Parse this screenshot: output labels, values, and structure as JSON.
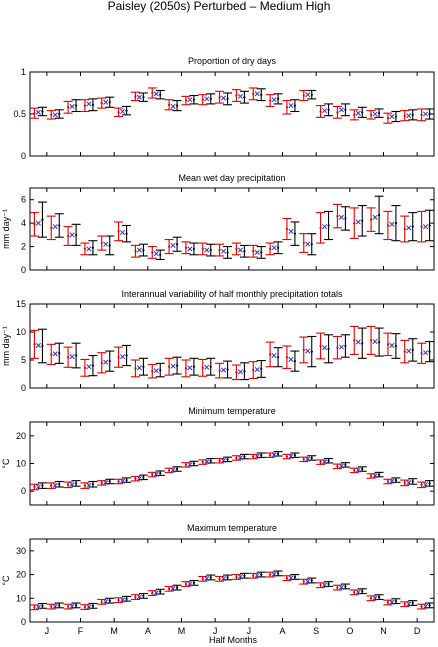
{
  "figure": {
    "title": "Paisley (2050s) Perturbed – Medium High",
    "xlabel": "Half Months",
    "month_labels": [
      "J",
      "F",
      "M",
      "A",
      "M",
      "J",
      "J",
      "A",
      "S",
      "O",
      "N",
      "D"
    ]
  },
  "colors": {
    "baseline": "#000000",
    "perturbed": "#dd0000",
    "marker": "#3333cc"
  },
  "chart_data": [
    {
      "type": "errorbar",
      "title": "Proportion of dry days",
      "ylabel": "",
      "ylim": [
        0,
        1
      ],
      "yticks": [
        0,
        0.5,
        1
      ],
      "ytick_labels": [
        "0",
        "0.5",
        "1"
      ],
      "x": [
        1,
        2,
        3,
        4,
        5,
        6,
        7,
        8,
        9,
        10,
        11,
        12,
        13,
        14,
        15,
        16,
        17,
        18,
        19,
        20,
        21,
        22,
        23,
        24
      ],
      "series": [
        {
          "mean": [
            0.53,
            0.5,
            0.6,
            0.61,
            0.64,
            0.54,
            0.7,
            0.73,
            0.6,
            0.67,
            0.68,
            0.68,
            0.7,
            0.73,
            0.68,
            0.6,
            0.73,
            0.55,
            0.55,
            0.52,
            0.51,
            0.47,
            0.49,
            0.5
          ],
          "err": [
            0.05,
            0.05,
            0.07,
            0.07,
            0.06,
            0.05,
            0.05,
            0.05,
            0.06,
            0.05,
            0.06,
            0.07,
            0.07,
            0.07,
            0.06,
            0.07,
            0.05,
            0.07,
            0.07,
            0.06,
            0.05,
            0.06,
            0.06,
            0.06
          ]
        },
        {
          "mean": [
            0.51,
            0.49,
            0.58,
            0.6,
            0.63,
            0.52,
            0.71,
            0.75,
            0.61,
            0.66,
            0.67,
            0.7,
            0.72,
            0.74,
            0.66,
            0.58,
            0.72,
            0.53,
            0.52,
            0.49,
            0.49,
            0.45,
            0.48,
            0.49
          ],
          "err": [
            0.06,
            0.05,
            0.07,
            0.07,
            0.06,
            0.05,
            0.05,
            0.06,
            0.06,
            0.05,
            0.06,
            0.07,
            0.07,
            0.07,
            0.07,
            0.08,
            0.06,
            0.07,
            0.07,
            0.06,
            0.05,
            0.06,
            0.06,
            0.07
          ]
        },
        {
          "mean": [
            0.52,
            0.49,
            0.59,
            0.62,
            0.64,
            0.53,
            0.7,
            0.74,
            0.59,
            0.67,
            0.68,
            0.69,
            0.71,
            0.74,
            0.67,
            0.6,
            0.73,
            0.54,
            0.55,
            0.51,
            0.5,
            0.47,
            0.48,
            0.5
          ]
        }
      ]
    },
    {
      "type": "errorbar",
      "title": "Mean wet day precipitation",
      "ylabel": "mm day⁻¹",
      "ylim": [
        0,
        7
      ],
      "yticks": [
        0,
        2,
        4,
        6
      ],
      "ytick_labels": [
        "0",
        "2",
        "4",
        "6"
      ],
      "x": [
        1,
        2,
        3,
        4,
        5,
        6,
        7,
        8,
        9,
        10,
        11,
        12,
        13,
        14,
        15,
        16,
        17,
        18,
        19,
        20,
        21,
        22,
        23,
        24
      ],
      "series": [
        {
          "mean": [
            4.3,
            3.8,
            3.0,
            1.9,
            2.1,
            3.1,
            1.7,
            1.3,
            2.2,
            1.8,
            1.7,
            1.5,
            1.6,
            1.5,
            1.9,
            3.1,
            2.2,
            3.8,
            4.4,
            4.2,
            4.7,
            4.0,
            3.7,
            3.8
          ],
          "err": [
            1.5,
            1.0,
            0.9,
            0.6,
            0.8,
            0.7,
            0.5,
            0.4,
            0.6,
            0.5,
            0.5,
            0.5,
            0.5,
            0.5,
            0.5,
            1.0,
            0.9,
            1.2,
            1.0,
            1.3,
            1.6,
            1.5,
            1.2,
            1.3
          ]
        },
        {
          "mean": [
            3.9,
            3.6,
            2.9,
            1.8,
            2.3,
            3.3,
            1.6,
            1.5,
            2.0,
            1.9,
            1.8,
            1.7,
            1.8,
            1.6,
            1.8,
            3.5,
            2.3,
            3.6,
            4.6,
            4.0,
            4.3,
            3.8,
            3.5,
            3.7
          ],
          "err": [
            1.0,
            1.0,
            0.8,
            0.5,
            0.6,
            0.8,
            0.5,
            0.5,
            0.6,
            0.5,
            0.5,
            0.5,
            0.5,
            0.5,
            0.5,
            0.9,
            0.8,
            1.3,
            1.0,
            1.3,
            1.0,
            1.2,
            1.1,
            1.3
          ]
        },
        {
          "mean": [
            4.0,
            3.7,
            3.0,
            1.8,
            2.2,
            3.2,
            1.7,
            1.4,
            2.1,
            1.8,
            1.7,
            1.6,
            1.7,
            1.5,
            1.9,
            3.3,
            2.2,
            3.7,
            4.5,
            4.1,
            4.5,
            3.9,
            3.6,
            3.7
          ]
        }
      ]
    },
    {
      "type": "errorbar",
      "title": "Interannual variability of half monthly precipitation totals",
      "ylabel": "mm day⁻¹",
      "ylim": [
        0,
        15
      ],
      "yticks": [
        0,
        5,
        10,
        15
      ],
      "ytick_labels": [
        "0",
        "5",
        "10",
        "15"
      ],
      "x": [
        1,
        2,
        3,
        4,
        5,
        6,
        7,
        8,
        9,
        10,
        11,
        12,
        13,
        14,
        15,
        16,
        17,
        18,
        19,
        20,
        21,
        22,
        23,
        24
      ],
      "series": [
        {
          "mean": [
            7.5,
            6.2,
            5.8,
            4.0,
            4.8,
            5.8,
            3.8,
            3.2,
            4.0,
            3.8,
            3.8,
            3.3,
            3.0,
            3.4,
            5.5,
            4.8,
            6.5,
            7.0,
            7.5,
            8.0,
            8.2,
            7.5,
            6.8,
            6.5
          ],
          "err": [
            3.0,
            1.8,
            2.2,
            1.8,
            1.8,
            1.8,
            1.5,
            1.2,
            1.5,
            1.5,
            1.5,
            1.5,
            1.5,
            1.5,
            1.7,
            1.8,
            2.7,
            2.5,
            2.0,
            2.7,
            2.5,
            2.2,
            2.0,
            1.8
          ]
        },
        {
          "mean": [
            7.8,
            6.0,
            5.5,
            3.6,
            4.5,
            5.5,
            3.5,
            3.0,
            3.8,
            3.5,
            3.6,
            3.1,
            2.8,
            3.2,
            6.0,
            5.5,
            6.8,
            7.5,
            7.2,
            8.5,
            8.5,
            7.8,
            6.5,
            6.2
          ],
          "err": [
            2.5,
            1.8,
            1.8,
            1.5,
            1.8,
            1.8,
            1.5,
            1.2,
            1.5,
            1.5,
            1.5,
            1.3,
            1.3,
            1.5,
            2.2,
            2.0,
            2.3,
            2.3,
            2.0,
            2.5,
            2.5,
            2.0,
            2.0,
            1.8
          ]
        },
        {
          "mean": [
            7.6,
            6.1,
            5.6,
            3.8,
            4.6,
            5.6,
            3.6,
            3.1,
            3.9,
            3.6,
            3.7,
            3.2,
            2.9,
            3.3,
            5.8,
            5.1,
            6.6,
            7.2,
            7.3,
            8.2,
            8.3,
            7.6,
            6.6,
            6.3
          ]
        }
      ]
    },
    {
      "type": "errorbar",
      "title": "Minimum temperature",
      "ylabel": "°C",
      "ylim": [
        -5,
        25
      ],
      "yticks": [
        0,
        10,
        20
      ],
      "ytick_labels": [
        "0",
        "10",
        "20"
      ],
      "x": [
        1,
        2,
        3,
        4,
        5,
        6,
        7,
        8,
        9,
        10,
        11,
        12,
        13,
        14,
        15,
        16,
        17,
        18,
        19,
        20,
        21,
        22,
        23,
        24
      ],
      "series": [
        {
          "mean": [
            2.0,
            2.5,
            2.8,
            2.5,
            3.5,
            4.0,
            5.0,
            6.5,
            8.0,
            10.0,
            11.0,
            11.5,
            12.5,
            13.0,
            13.5,
            13.0,
            12.0,
            11.0,
            9.5,
            8.0,
            6.0,
            4.0,
            3.5,
            2.8
          ],
          "err": [
            1.0,
            1.0,
            1.0,
            1.0,
            0.8,
            0.8,
            0.8,
            0.8,
            0.8,
            0.8,
            0.8,
            0.8,
            0.8,
            0.8,
            0.8,
            0.8,
            0.8,
            0.8,
            0.8,
            0.8,
            0.8,
            0.8,
            1.0,
            1.0
          ]
        },
        {
          "mean": [
            1.5,
            2.0,
            2.3,
            2.0,
            3.0,
            3.5,
            4.5,
            6.0,
            7.5,
            9.5,
            10.5,
            11.0,
            12.0,
            12.5,
            13.0,
            12.5,
            11.5,
            10.5,
            9.0,
            7.5,
            5.5,
            3.5,
            3.0,
            2.3
          ],
          "err": [
            1.0,
            1.0,
            1.0,
            1.0,
            0.8,
            0.8,
            0.8,
            0.8,
            0.8,
            0.8,
            0.8,
            0.8,
            0.8,
            0.8,
            0.8,
            0.8,
            0.8,
            0.8,
            0.8,
            0.8,
            0.8,
            0.8,
            1.0,
            1.0
          ]
        },
        {
          "mean": [
            1.6,
            2.1,
            2.4,
            2.1,
            3.1,
            3.6,
            4.6,
            6.1,
            7.6,
            9.6,
            10.6,
            11.1,
            12.1,
            12.6,
            13.1,
            12.6,
            11.6,
            10.6,
            9.1,
            7.6,
            5.6,
            3.6,
            3.1,
            2.4
          ]
        }
      ]
    },
    {
      "type": "errorbar",
      "title": "Maximum temperature",
      "ylabel": "°C",
      "ylim": [
        0,
        35
      ],
      "yticks": [
        0,
        10,
        20,
        30
      ],
      "ytick_labels": [
        "0",
        "10",
        "20",
        "30"
      ],
      "x": [
        1,
        2,
        3,
        4,
        5,
        6,
        7,
        8,
        9,
        10,
        11,
        12,
        13,
        14,
        15,
        16,
        17,
        18,
        19,
        20,
        21,
        22,
        23,
        24
      ],
      "series": [
        {
          "mean": [
            6.8,
            7.0,
            7.0,
            6.8,
            9.0,
            9.8,
            11.0,
            12.8,
            14.5,
            16.5,
            18.8,
            18.8,
            19.5,
            20.0,
            20.5,
            19.0,
            17.5,
            16.0,
            15.0,
            13.0,
            10.5,
            8.8,
            8.0,
            7.0
          ],
          "err": [
            1.0,
            1.0,
            1.0,
            1.0,
            1.0,
            1.0,
            1.0,
            1.0,
            1.0,
            1.0,
            1.0,
            1.0,
            1.0,
            1.0,
            1.0,
            1.0,
            1.0,
            1.0,
            1.0,
            1.0,
            1.0,
            1.0,
            1.0,
            1.0
          ]
        },
        {
          "mean": [
            6.2,
            6.5,
            6.5,
            6.3,
            8.5,
            9.2,
            10.5,
            12.2,
            14.0,
            16.0,
            18.2,
            18.2,
            19.0,
            19.5,
            20.0,
            18.5,
            17.0,
            15.5,
            14.5,
            12.5,
            10.0,
            8.2,
            7.5,
            6.5
          ],
          "err": [
            1.0,
            1.0,
            1.0,
            1.0,
            1.0,
            1.0,
            1.0,
            1.0,
            1.0,
            1.0,
            1.0,
            1.0,
            1.0,
            1.0,
            1.0,
            1.0,
            1.0,
            1.0,
            1.0,
            1.0,
            1.0,
            1.0,
            1.0,
            1.0
          ]
        },
        {
          "mean": [
            6.3,
            6.6,
            6.6,
            6.4,
            8.6,
            9.3,
            10.6,
            12.3,
            14.1,
            16.1,
            18.3,
            18.3,
            19.1,
            19.6,
            20.1,
            18.6,
            17.1,
            15.6,
            14.6,
            12.6,
            10.1,
            8.3,
            7.6,
            6.6
          ]
        }
      ]
    }
  ]
}
